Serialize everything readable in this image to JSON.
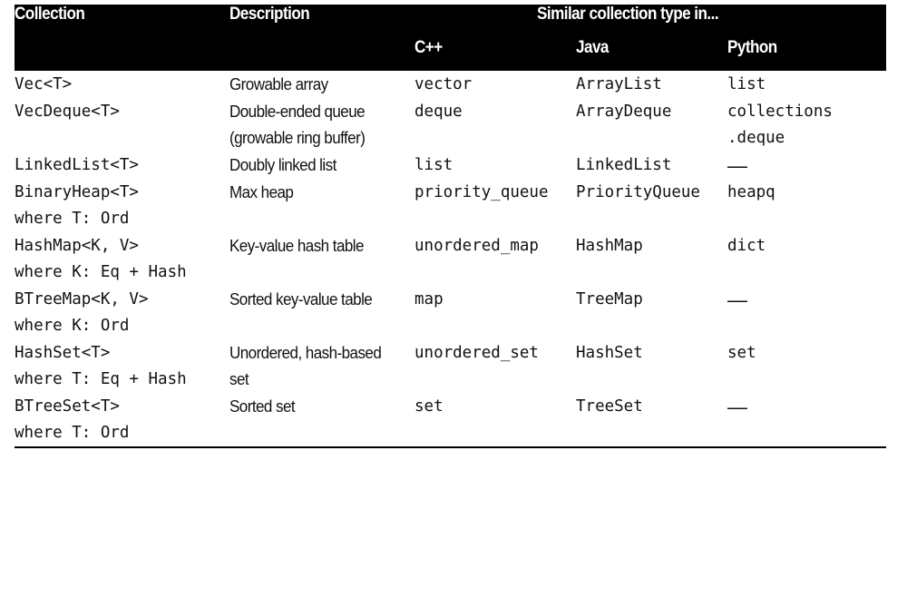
{
  "table": {
    "headers": {
      "collection": "Collection",
      "description": "Description",
      "similar": "Similar collection type in...",
      "cpp": "C++",
      "java": "Java",
      "python": "Python"
    },
    "rows": [
      {
        "collection": [
          "Vec<T>"
        ],
        "description": [
          "Growable array"
        ],
        "cpp": "vector",
        "java": "ArrayList",
        "python": [
          "list"
        ]
      },
      {
        "collection": [
          "VecDeque<T>"
        ],
        "description": [
          "Double-ended queue",
          "(growable ring buffer)"
        ],
        "cpp": "deque",
        "java": "ArrayDeque",
        "python": [
          "collections",
          ".deque"
        ]
      },
      {
        "collection": [
          "LinkedList<T>"
        ],
        "description": [
          "Doubly linked list"
        ],
        "cpp": "list",
        "java": "LinkedList",
        "python": [
          "—"
        ]
      },
      {
        "collection": [
          "BinaryHeap<T>",
          "where T: Ord"
        ],
        "description": [
          "Max heap"
        ],
        "cpp": "priority_queue",
        "java": "PriorityQueue",
        "python": [
          "heapq"
        ]
      },
      {
        "collection": [
          "HashMap<K, V>",
          "where K: Eq + Hash"
        ],
        "description": [
          "Key-value hash table"
        ],
        "cpp": "unordered_map",
        "java": "HashMap",
        "python": [
          "dict"
        ]
      },
      {
        "collection": [
          "BTreeMap<K, V>",
          "where K: Ord"
        ],
        "description": [
          "Sorted key-value table"
        ],
        "cpp": "map",
        "java": "TreeMap",
        "python": [
          "—"
        ]
      },
      {
        "collection": [
          "HashSet<T>",
          "where T: Eq + Hash"
        ],
        "description": [
          "Unordered, hash-based",
          "set"
        ],
        "cpp": "unordered_set",
        "java": "HashSet",
        "python": [
          "set"
        ]
      },
      {
        "collection": [
          "BTreeSet<T>",
          "where T: Ord"
        ],
        "description": [
          "Sorted set"
        ],
        "cpp": "set",
        "java": "TreeSet",
        "python": [
          "—"
        ]
      }
    ]
  }
}
